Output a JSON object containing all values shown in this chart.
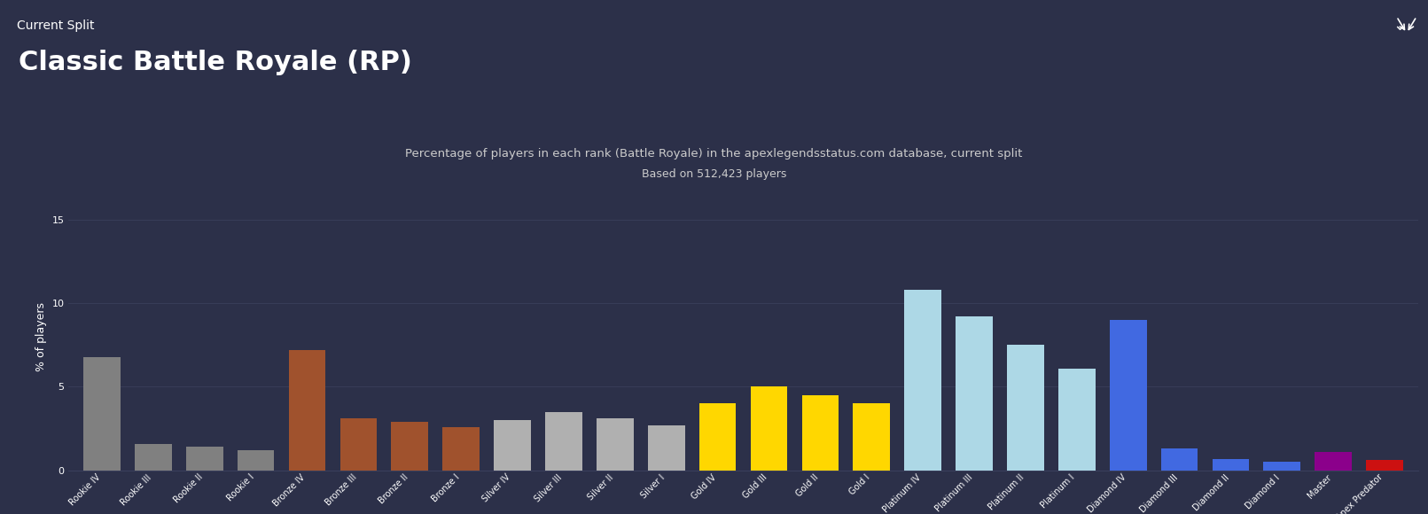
{
  "title": "Classic Battle Royale (RP)",
  "header_bar_text": "Current Split",
  "subtitle": "Percentage of players in each rank (Battle Royale) in the apexlegendsstatus.com database, current split",
  "subtitle2": "Based on 512,423 players",
  "ylabel": "% of players",
  "ylim": [
    0,
    16
  ],
  "yticks": [
    0,
    5,
    10,
    15
  ],
  "background_color": "#2c3049",
  "plot_bg_color": "#2c3049",
  "header_color": "#1a1d2e",
  "text_color": "#ffffff",
  "subtitle_color": "#cccccc",
  "grid_color": "#3a3f5c",
  "categories": [
    "Rookie IV",
    "Rookie III",
    "Rookie II",
    "Rookie I",
    "Bronze IV",
    "Bronze III",
    "Bronze II",
    "Bronze I",
    "Silver IV",
    "Silver III",
    "Silver II",
    "Silver I",
    "Gold IV",
    "Gold III",
    "Gold II",
    "Gold I",
    "Platinum IV",
    "Platinum III",
    "Platinum II",
    "Platinum I",
    "Diamond IV",
    "Diamond III",
    "Diamond II",
    "Diamond I",
    "Master",
    "Apex Predator"
  ],
  "values": [
    6.8,
    1.6,
    1.4,
    1.2,
    7.2,
    3.1,
    2.9,
    2.6,
    3.0,
    3.5,
    3.1,
    2.7,
    4.0,
    5.0,
    4.5,
    4.0,
    10.8,
    9.2,
    7.5,
    6.1,
    9.0,
    1.3,
    0.7,
    0.5,
    1.1,
    0.6
  ],
  "bar_colors": [
    "#808080",
    "#808080",
    "#808080",
    "#808080",
    "#a0522d",
    "#a0522d",
    "#a0522d",
    "#a0522d",
    "#b0b0b0",
    "#b0b0b0",
    "#b0b0b0",
    "#b0b0b0",
    "#FFD700",
    "#FFD700",
    "#FFD700",
    "#FFD700",
    "#ADD8E6",
    "#ADD8E6",
    "#ADD8E6",
    "#ADD8E6",
    "#4169E1",
    "#4169E1",
    "#4169E1",
    "#4169E1",
    "#8B008B",
    "#cc1111"
  ],
  "tick_fontsize": 7,
  "label_fontsize": 9,
  "title_fontsize": 22,
  "subtitle_fontsize": 9.5,
  "header_fontsize": 10
}
